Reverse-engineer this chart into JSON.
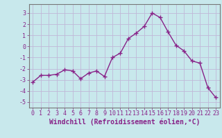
{
  "x": [
    0,
    1,
    2,
    3,
    4,
    5,
    6,
    7,
    8,
    9,
    10,
    11,
    12,
    13,
    14,
    15,
    16,
    17,
    18,
    19,
    20,
    21,
    22,
    23
  ],
  "y": [
    -3.2,
    -2.6,
    -2.6,
    -2.5,
    -2.1,
    -2.2,
    -2.9,
    -2.4,
    -2.2,
    -2.7,
    -1.0,
    -0.6,
    0.7,
    1.2,
    1.8,
    3.0,
    2.6,
    1.3,
    0.1,
    -0.4,
    -1.3,
    -1.5,
    -3.7,
    -4.6
  ],
  "line_color": "#882288",
  "marker": "+",
  "marker_size": 4,
  "linewidth": 1.0,
  "bg_color": "#c8e8ec",
  "grid_color": "#c0b8d8",
  "xlabel": "Windchill (Refroidissement éolien,°C)",
  "ylabel": "",
  "title": "",
  "xlim": [
    -0.5,
    23.5
  ],
  "ylim": [
    -5.5,
    3.8
  ],
  "yticks": [
    -5,
    -4,
    -3,
    -2,
    -1,
    0,
    1,
    2,
    3
  ],
  "xticks": [
    0,
    1,
    2,
    3,
    4,
    5,
    6,
    7,
    8,
    9,
    10,
    11,
    12,
    13,
    14,
    15,
    16,
    17,
    18,
    19,
    20,
    21,
    22,
    23
  ],
  "tick_color": "#882288",
  "axis_color": "#882288",
  "xlabel_fontsize": 7.0,
  "xlabel_color": "#882288",
  "tick_fontsize": 6.0,
  "tick_label_color": "#882288",
  "spine_color": "#777777"
}
